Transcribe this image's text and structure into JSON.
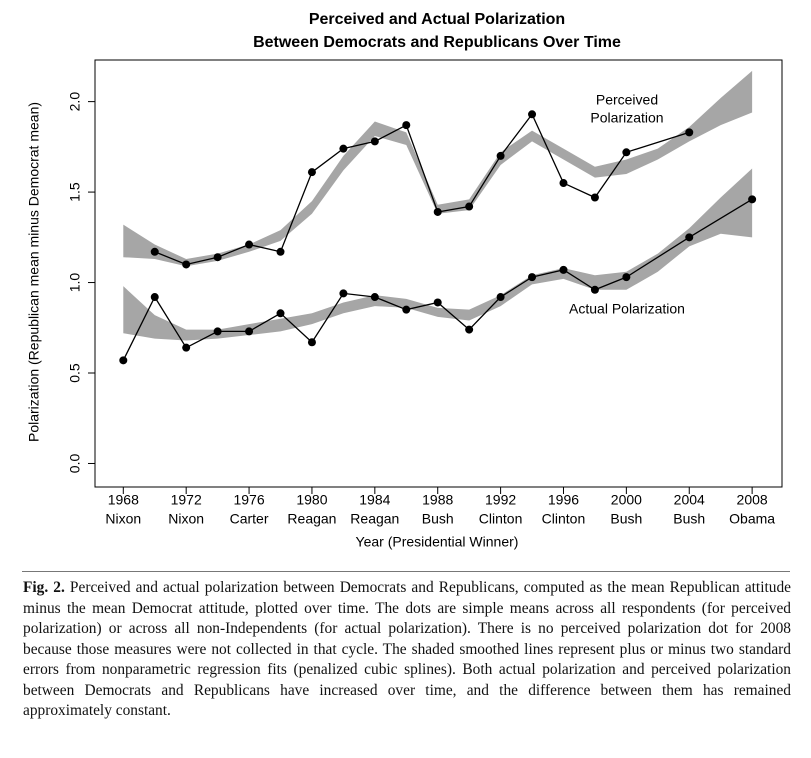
{
  "chart_data": {
    "type": "line",
    "title": [
      "Perceived and Actual Polarization",
      "Between Democrats and Republicans Over Time"
    ],
    "x_label": "Year (Presidential Winner)",
    "y_label": "Polarization (Republican mean minus Democrat mean)",
    "xlim": [
      1966.2,
      2009.9
    ],
    "xticks": [
      1968,
      1972,
      1976,
      1980,
      1984,
      1988,
      1992,
      1996,
      2000,
      2004,
      2008
    ],
    "winners": [
      "Nixon",
      "Nixon",
      "Carter",
      "Reagan",
      "Reagan",
      "Bush",
      "Clinton",
      "Clinton",
      "Bush",
      "Bush",
      "Obama"
    ],
    "ylim": [
      -0.13,
      2.23
    ],
    "yticks": [
      {
        "value": 0,
        "label": "0.0"
      },
      0.5,
      {
        "value": 1,
        "label": "1.0"
      },
      1.5,
      {
        "value": 2,
        "label": "2.0"
      }
    ],
    "annotations": [
      [
        "Perceived",
        "Polarization"
      ],
      [
        "Actual Polarization"
      ]
    ],
    "bands": [
      {
        "color": "#a6a6a6",
        "x": [
          1968,
          1970,
          1972,
          1974,
          1976,
          1978,
          1980,
          1982,
          1984,
          1986,
          1988,
          1990,
          1992,
          1994,
          1996,
          1998,
          2000,
          2002,
          2004,
          2006,
          2008
        ],
        "lower": [
          1.14,
          1.13,
          1.09,
          1.12,
          1.17,
          1.23,
          1.38,
          1.62,
          1.81,
          1.76,
          1.38,
          1.4,
          1.65,
          1.78,
          1.68,
          1.58,
          1.6,
          1.68,
          1.78,
          1.87,
          1.94
        ],
        "upper": [
          1.32,
          1.21,
          1.13,
          1.16,
          1.21,
          1.29,
          1.45,
          1.7,
          1.89,
          1.83,
          1.43,
          1.46,
          1.72,
          1.84,
          1.74,
          1.64,
          1.68,
          1.74,
          1.86,
          2.02,
          2.17
        ]
      },
      {
        "color": "#a6a6a6",
        "x": [
          1968,
          1970,
          1972,
          1974,
          1976,
          1978,
          1980,
          1982,
          1984,
          1986,
          1988,
          1990,
          1992,
          1994,
          1996,
          1998,
          2000,
          2002,
          2004,
          2006,
          2008
        ],
        "lower": [
          0.72,
          0.69,
          0.68,
          0.69,
          0.71,
          0.73,
          0.77,
          0.83,
          0.87,
          0.86,
          0.81,
          0.79,
          0.87,
          0.99,
          1.02,
          0.96,
          0.96,
          1.06,
          1.2,
          1.27,
          1.25
        ],
        "upper": [
          0.98,
          0.82,
          0.74,
          0.74,
          0.77,
          0.8,
          0.83,
          0.89,
          0.93,
          0.91,
          0.86,
          0.85,
          0.93,
          1.04,
          1.08,
          1.04,
          1.06,
          1.16,
          1.3,
          1.47,
          1.63
        ]
      }
    ],
    "series": [
      {
        "color": "#000000",
        "x": [
          1970,
          1972,
          1974,
          1976,
          1978,
          1980,
          1982,
          1984,
          1986,
          1988,
          1990,
          1992,
          1994,
          1996,
          1998,
          2000,
          2004
        ],
        "values": [
          1.17,
          1.1,
          1.14,
          1.21,
          1.17,
          1.61,
          1.74,
          1.78,
          1.87,
          1.39,
          1.42,
          1.7,
          1.93,
          1.55,
          1.47,
          1.72,
          1.83
        ]
      },
      {
        "color": "#000000",
        "x": [
          1968,
          1970,
          1972,
          1974,
          1976,
          1978,
          1980,
          1982,
          1984,
          1986,
          1988,
          1990,
          1992,
          1994,
          1996,
          1998,
          2000,
          2004,
          2008
        ],
        "values": [
          0.57,
          0.92,
          0.64,
          0.73,
          0.73,
          0.83,
          0.67,
          0.94,
          0.92,
          0.85,
          0.89,
          0.74,
          0.92,
          1.03,
          1.07,
          0.96,
          1.03,
          1.25,
          1.46
        ]
      }
    ]
  },
  "caption": {
    "label": "Fig. 2.",
    "text": "Perceived and actual polarization between Democrats and Republicans, computed as the mean Republican attitude minus the mean Democrat attitude, plotted over time. The dots are simple means across all respondents (for perceived polarization) or across all non-Independents (for actual polarization). There is no perceived polarization dot for 2008 because those measures were not collected in that cycle. The shaded smoothed lines represent plus or minus two standard errors from nonparametric regression fits (penalized cubic splines). Both actual polarization and perceived polarization between Democrats and Republicans have increased over time, and the difference between them has remained approximately constant."
  }
}
